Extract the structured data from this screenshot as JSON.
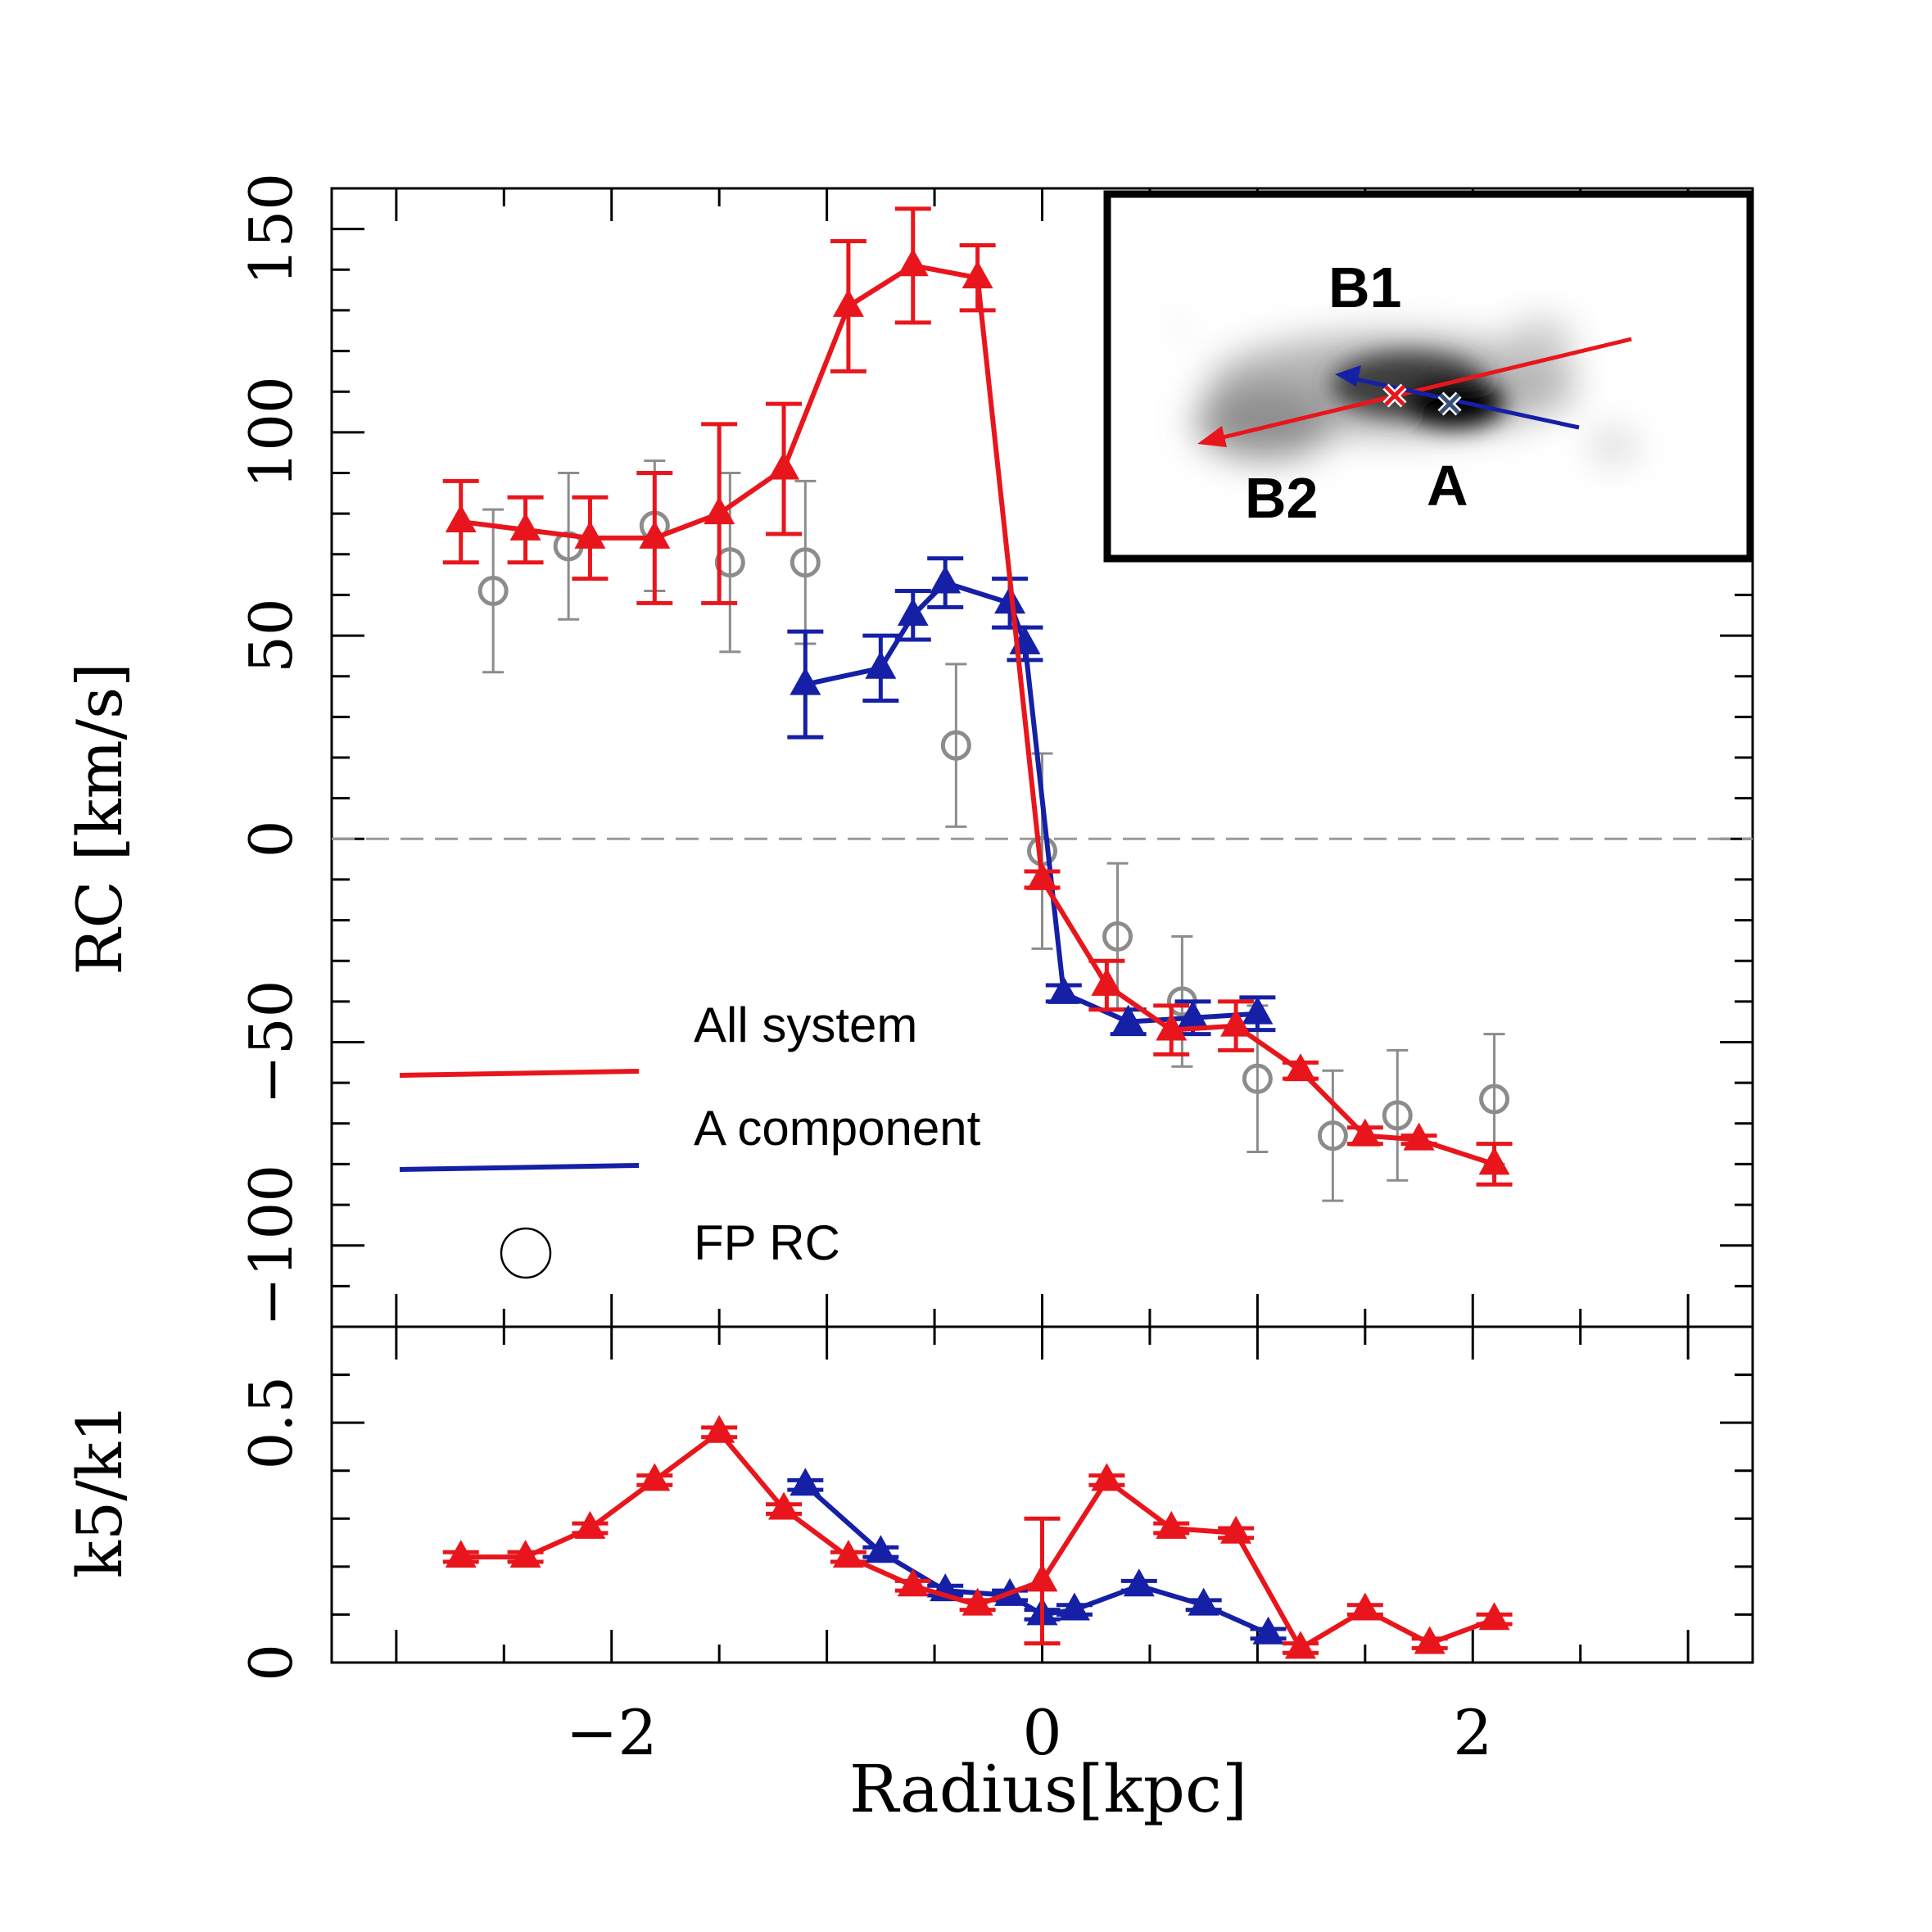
{
  "chart_data": [
    {
      "type": "line",
      "panel": "top",
      "ylabel": "RC  [km/s]",
      "xlim": [
        -3.3,
        3.3
      ],
      "ylim": [
        -120,
        160
      ],
      "yticks": [
        -100,
        -50,
        0,
        50,
        100,
        150
      ],
      "ytick_labels": [
        "−100",
        "−50",
        "0",
        "50",
        "100",
        "150"
      ],
      "zero_line": "dashed gray",
      "series": [
        {
          "name": "All system",
          "color": "#e8161c",
          "marker": "triangle",
          "x": [
            -2.7,
            -2.4,
            -2.1,
            -1.8,
            -1.5,
            -1.2,
            -0.9,
            -0.6,
            -0.3,
            0.0,
            0.3,
            0.6,
            0.9,
            1.2,
            1.5,
            1.75,
            2.1
          ],
          "y": [
            78,
            76,
            74,
            74,
            80,
            91,
            131,
            141,
            138,
            -10,
            -36,
            -47,
            -46,
            -57,
            -73,
            -74,
            -80
          ],
          "err": [
            10,
            8,
            10,
            16,
            22,
            16,
            16,
            14,
            8,
            2,
            6,
            6,
            6,
            2,
            2,
            1,
            5
          ]
        },
        {
          "name": "A component",
          "color": "#1520a6",
          "marker": "triangle",
          "x": [
            -1.1,
            -0.75,
            -0.6,
            -0.45,
            -0.15,
            -0.08,
            0.1,
            0.4,
            0.7,
            1.0
          ],
          "y": [
            38,
            42,
            55,
            63,
            58,
            48,
            -38,
            -45,
            -44,
            -43
          ],
          "err": [
            13,
            8,
            6,
            6,
            6,
            4,
            2,
            3,
            4,
            4
          ]
        },
        {
          "name": "FP RC",
          "color": "#8c8c8c",
          "marker": "open-circle",
          "x": [
            -2.55,
            -2.2,
            -1.8,
            -1.45,
            -1.1,
            -0.4,
            0.0,
            0.35,
            0.65,
            1.0,
            1.35,
            1.65,
            2.1
          ],
          "y": [
            61,
            72,
            77,
            68,
            68,
            23,
            -3,
            -24,
            -40,
            -59,
            -73,
            -68,
            -64
          ],
          "err": [
            20,
            18,
            16,
            22,
            20,
            20,
            24,
            18,
            16,
            18,
            16,
            16,
            16
          ]
        }
      ],
      "legend": {
        "placement": "lower-left",
        "entries": [
          "All system",
          "A component",
          "FP RC"
        ]
      },
      "inset": {
        "placement": "top-right",
        "labels": [
          "B1",
          "B2",
          "A"
        ]
      }
    },
    {
      "type": "line",
      "panel": "bottom",
      "ylabel": "k5/k1",
      "xlabel": "Radius[kpc]",
      "xlim": [
        -3.3,
        3.3
      ],
      "ylim": [
        0,
        0.7
      ],
      "yticks": [
        0,
        0.5
      ],
      "ytick_labels": [
        "0",
        "0.5"
      ],
      "xticks": [
        -2,
        0,
        2
      ],
      "xtick_labels": [
        "−2",
        "0",
        "2"
      ],
      "series": [
        {
          "name": "All system",
          "color": "#e8161c",
          "marker": "triangle",
          "x": [
            -2.7,
            -2.4,
            -2.1,
            -1.8,
            -1.5,
            -1.2,
            -0.9,
            -0.6,
            -0.3,
            0.0,
            0.3,
            0.6,
            0.9,
            1.2,
            1.5,
            1.8,
            2.1
          ],
          "y": [
            0.22,
            0.22,
            0.28,
            0.38,
            0.48,
            0.32,
            0.22,
            0.16,
            0.12,
            0.17,
            0.38,
            0.28,
            0.27,
            0.03,
            0.11,
            0.04,
            0.09
          ],
          "err": [
            0.01,
            0.01,
            0.01,
            0.01,
            0.01,
            0.01,
            0.01,
            0.01,
            0.01,
            0.13,
            0.01,
            0.01,
            0.01,
            0.01,
            0.01,
            0.01,
            0.01
          ]
        },
        {
          "name": "A component",
          "color": "#1520a6",
          "marker": "triangle",
          "x": [
            -1.1,
            -0.75,
            -0.45,
            -0.15,
            0.0,
            0.15,
            0.45,
            0.75,
            1.05
          ],
          "y": [
            0.37,
            0.23,
            0.15,
            0.14,
            0.1,
            0.11,
            0.16,
            0.12,
            0.06
          ],
          "err": [
            0.01,
            0.01,
            0.01,
            0.01,
            0.01,
            0.01,
            0.01,
            0.01,
            0.01
          ]
        }
      ]
    }
  ]
}
